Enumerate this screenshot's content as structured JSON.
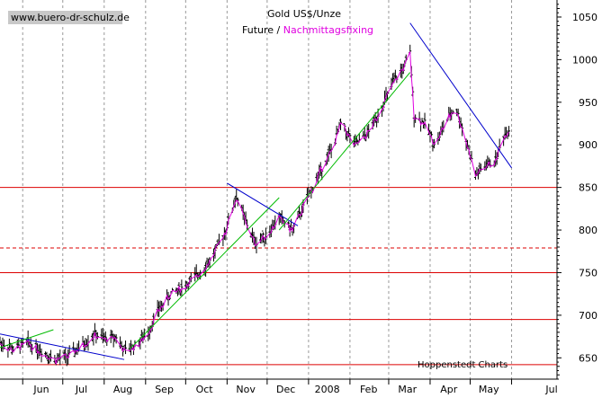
{
  "chart_data": {
    "type": "ohlc",
    "title": "Gold US$/Unze",
    "subtitle_prefix": "Future / ",
    "subtitle_highlight": "Nachmittagsfixing",
    "watermark": "www.buero-dr-schulz.de",
    "source": "Hoppenstedt Charts",
    "x_range": [
      "2007-05-15",
      "2008-07-05"
    ],
    "ylim": [
      625,
      1070
    ],
    "yticks": [
      650,
      700,
      750,
      800,
      850,
      900,
      950,
      1000,
      1050
    ],
    "x_labels": [
      {
        "label": "Jun",
        "date": "2007-06-15"
      },
      {
        "label": "Jul",
        "date": "2007-07-15"
      },
      {
        "label": "Aug",
        "date": "2007-08-15"
      },
      {
        "label": "Sep",
        "date": "2007-09-15"
      },
      {
        "label": "Oct",
        "date": "2007-10-15"
      },
      {
        "label": "Nov",
        "date": "2007-11-15"
      },
      {
        "label": "Dec",
        "date": "2007-12-15"
      },
      {
        "label": "2008",
        "date": "2008-01-15"
      },
      {
        "label": "Feb",
        "date": "2008-02-15"
      },
      {
        "label": "Mar",
        "date": "2008-03-15"
      },
      {
        "label": "Apr",
        "date": "2008-04-15"
      },
      {
        "label": "May",
        "date": "2008-05-15"
      },
      {
        "label": "Jul",
        "date": "2008-07-01"
      }
    ],
    "month_boundaries": [
      "2007-06-01",
      "2007-07-01",
      "2007-08-01",
      "2007-09-01",
      "2007-10-01",
      "2007-11-01",
      "2007-12-01",
      "2008-01-01",
      "2008-02-01",
      "2008-03-01",
      "2008-04-01",
      "2008-05-01",
      "2008-06-01"
    ],
    "horizontal_lines": [
      {
        "y": 850,
        "style": "solid"
      },
      {
        "y": 779,
        "style": "dashed"
      },
      {
        "y": 750,
        "style": "solid"
      },
      {
        "y": 695,
        "style": "solid"
      },
      {
        "y": 642,
        "style": "solid"
      }
    ],
    "trend_lines": [
      {
        "color": "#0000cc",
        "points": [
          [
            "2007-05-15",
            678
          ],
          [
            "2007-08-16",
            648
          ]
        ]
      },
      {
        "color": "#00bb00",
        "points": [
          [
            "2007-05-15",
            662
          ],
          [
            "2007-06-24",
            683
          ]
        ]
      },
      {
        "color": "#00bb00",
        "points": [
          [
            "2007-08-20",
            660
          ],
          [
            "2007-12-10",
            838
          ]
        ]
      },
      {
        "color": "#0000cc",
        "points": [
          [
            "2007-11-01",
            855
          ],
          [
            "2007-12-24",
            805
          ]
        ]
      },
      {
        "color": "#00bb00",
        "points": [
          [
            "2007-12-10",
            800
          ],
          [
            "2008-03-17",
            985
          ]
        ]
      },
      {
        "color": "#0000cc",
        "points": [
          [
            "2008-03-17",
            1043
          ],
          [
            "2008-06-01",
            873
          ]
        ]
      }
    ],
    "price_anchors": [
      [
        "2007-05-15",
        668
      ],
      [
        "2007-05-25",
        660
      ],
      [
        "2007-06-05",
        668
      ],
      [
        "2007-06-15",
        658
      ],
      [
        "2007-06-25",
        648
      ],
      [
        "2007-07-05",
        652
      ],
      [
        "2007-07-15",
        664
      ],
      [
        "2007-07-25",
        678
      ],
      [
        "2007-08-01",
        672
      ],
      [
        "2007-08-10",
        675
      ],
      [
        "2007-08-16",
        658
      ],
      [
        "2007-08-25",
        665
      ],
      [
        "2007-09-03",
        680
      ],
      [
        "2007-09-10",
        705
      ],
      [
        "2007-09-20",
        725
      ],
      [
        "2007-10-01",
        735
      ],
      [
        "2007-10-10",
        748
      ],
      [
        "2007-10-20",
        765
      ],
      [
        "2007-10-31",
        800
      ],
      [
        "2007-11-08",
        840
      ],
      [
        "2007-11-15",
        810
      ],
      [
        "2007-11-22",
        785
      ],
      [
        "2007-12-01",
        795
      ],
      [
        "2007-12-10",
        815
      ],
      [
        "2007-12-20",
        800
      ],
      [
        "2008-01-01",
        840
      ],
      [
        "2008-01-10",
        870
      ],
      [
        "2008-01-20",
        900
      ],
      [
        "2008-01-25",
        925
      ],
      [
        "2008-02-05",
        900
      ],
      [
        "2008-02-15",
        915
      ],
      [
        "2008-02-25",
        945
      ],
      [
        "2008-03-05",
        975
      ],
      [
        "2008-03-12",
        990
      ],
      [
        "2008-03-17",
        1008
      ],
      [
        "2008-03-20",
        935
      ],
      [
        "2008-03-28",
        925
      ],
      [
        "2008-04-05",
        900
      ],
      [
        "2008-04-12",
        925
      ],
      [
        "2008-04-20",
        945
      ],
      [
        "2008-04-28",
        905
      ],
      [
        "2008-05-05",
        865
      ],
      [
        "2008-05-12",
        875
      ],
      [
        "2008-05-20",
        882
      ],
      [
        "2008-05-26",
        910
      ],
      [
        "2008-05-30",
        918
      ]
    ],
    "series": [
      {
        "name": "Future",
        "color": "#000000"
      },
      {
        "name": "Nachmittagsfixing",
        "color": "#e000e0"
      }
    ]
  }
}
